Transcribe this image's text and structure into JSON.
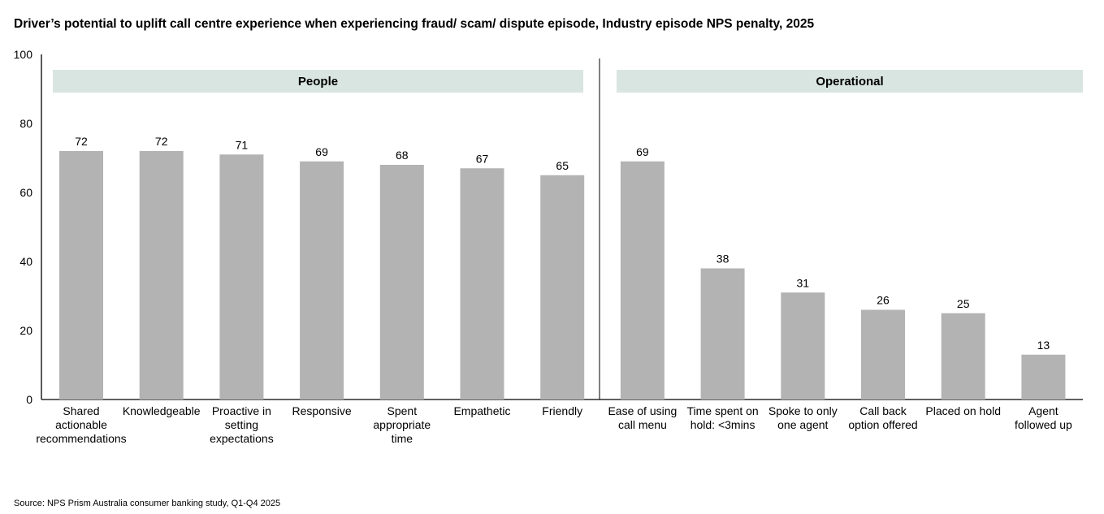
{
  "chart_data": {
    "type": "bar",
    "title": "Driver’s potential to uplift call centre experience when experiencing fraud/ scam/ dispute episode, Industry episode NPS penalty, 2025",
    "xlabel": "",
    "ylabel": "",
    "ylim": [
      0,
      100
    ],
    "yticks": [
      0,
      20,
      40,
      60,
      80,
      100
    ],
    "grid": false,
    "groups": [
      {
        "name": "People",
        "categories": [
          [
            "Shared",
            "actionable",
            "recommendations"
          ],
          [
            "Knowledgeable"
          ],
          [
            "Proactive in",
            "setting",
            "expectations"
          ],
          [
            "Responsive"
          ],
          [
            "Spent",
            "appropriate",
            "time"
          ],
          [
            "Empathetic"
          ],
          [
            "Friendly"
          ]
        ],
        "values": [
          72,
          72,
          71,
          69,
          68,
          67,
          65
        ]
      },
      {
        "name": "Operational",
        "categories": [
          [
            "Ease of using",
            "call menu"
          ],
          [
            "Time spent on",
            "hold: <3mins"
          ],
          [
            "Spoke to only",
            "one agent"
          ],
          [
            "Call back",
            "option offered"
          ],
          [
            "Placed on hold"
          ],
          [
            "Agent",
            "followed up"
          ]
        ],
        "values": [
          69,
          38,
          31,
          26,
          25,
          13
        ]
      }
    ],
    "colors": {
      "bar": "#b3b3b3",
      "group_band": "#d9e5e1",
      "axis": "#000000"
    }
  },
  "source": "Source: NPS Prism Australia consumer banking study, Q1-Q4 2025"
}
